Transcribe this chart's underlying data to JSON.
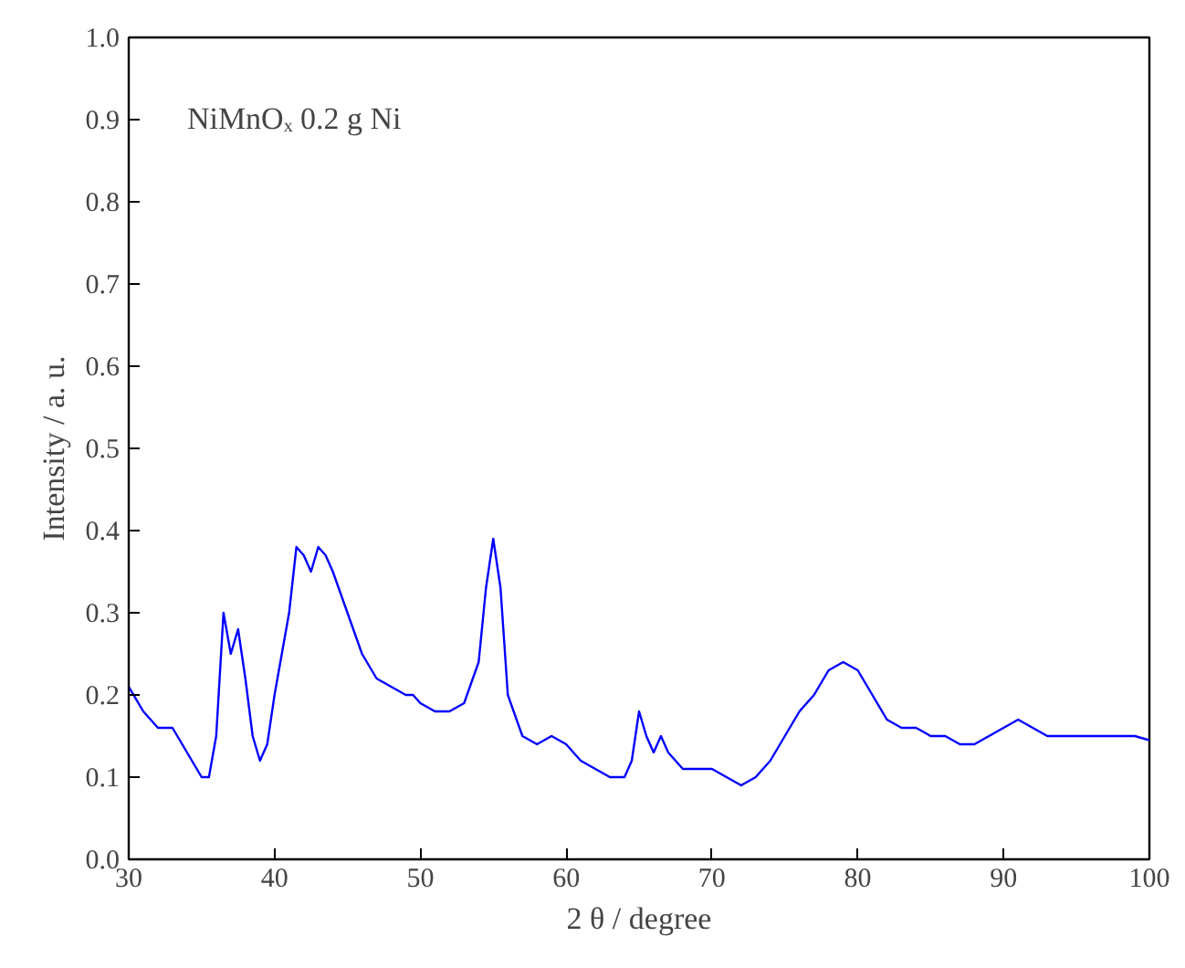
{
  "chart_data": {
    "type": "line",
    "xlabel": "2 θ / degree",
    "ylabel": "Intensity / a. u.",
    "annotations": [
      "NiMnOₓ 0.2 g Ni"
    ],
    "xlim": [
      30,
      100
    ],
    "xticks": [
      30,
      40,
      50,
      60,
      70,
      80,
      90,
      100
    ],
    "ylim": [
      0,
      1
    ],
    "yticks": [
      {
        "value": 0,
        "label": "0.0"
      },
      0.1,
      0.2,
      0.3,
      0.4,
      0.5,
      0.6,
      0.7,
      0.8,
      0.9,
      {
        "value": 1,
        "label": "1.0"
      }
    ],
    "grid": false,
    "series": [
      {
        "color": "#0000ff",
        "x": [
          30,
          31,
          32,
          33,
          34,
          35,
          35.5,
          36,
          36.5,
          37,
          37.5,
          38,
          38.5,
          39,
          39.5,
          40,
          41,
          41.5,
          42,
          42.5,
          43,
          43.5,
          44,
          45,
          46,
          47,
          48,
          49,
          49.5,
          50,
          51,
          52,
          53,
          54,
          54.5,
          55,
          55.5,
          56,
          57,
          58,
          59,
          60,
          61,
          62,
          63,
          64,
          64.5,
          65,
          65.5,
          66,
          66.5,
          67,
          68,
          69,
          70,
          71,
          72,
          73,
          74,
          75,
          76,
          77,
          78,
          79,
          80,
          81,
          82,
          83,
          84,
          85,
          86,
          87,
          88,
          89,
          90,
          91,
          92,
          93,
          95,
          97,
          99,
          100
        ],
        "values": [
          0.21,
          0.18,
          0.16,
          0.16,
          0.13,
          0.1,
          0.1,
          0.15,
          0.3,
          0.25,
          0.28,
          0.22,
          0.15,
          0.12,
          0.14,
          0.2,
          0.3,
          0.38,
          0.37,
          0.35,
          0.38,
          0.37,
          0.35,
          0.3,
          0.25,
          0.22,
          0.21,
          0.2,
          0.2,
          0.19,
          0.18,
          0.18,
          0.19,
          0.24,
          0.33,
          0.39,
          0.33,
          0.2,
          0.15,
          0.14,
          0.15,
          0.14,
          0.12,
          0.11,
          0.1,
          0.1,
          0.12,
          0.18,
          0.15,
          0.13,
          0.15,
          0.13,
          0.11,
          0.11,
          0.11,
          0.1,
          0.09,
          0.1,
          0.12,
          0.15,
          0.18,
          0.2,
          0.23,
          0.24,
          0.23,
          0.2,
          0.17,
          0.16,
          0.16,
          0.15,
          0.15,
          0.14,
          0.14,
          0.15,
          0.16,
          0.17,
          0.16,
          0.15,
          0.15,
          0.15,
          0.15,
          0.145
        ]
      }
    ]
  }
}
